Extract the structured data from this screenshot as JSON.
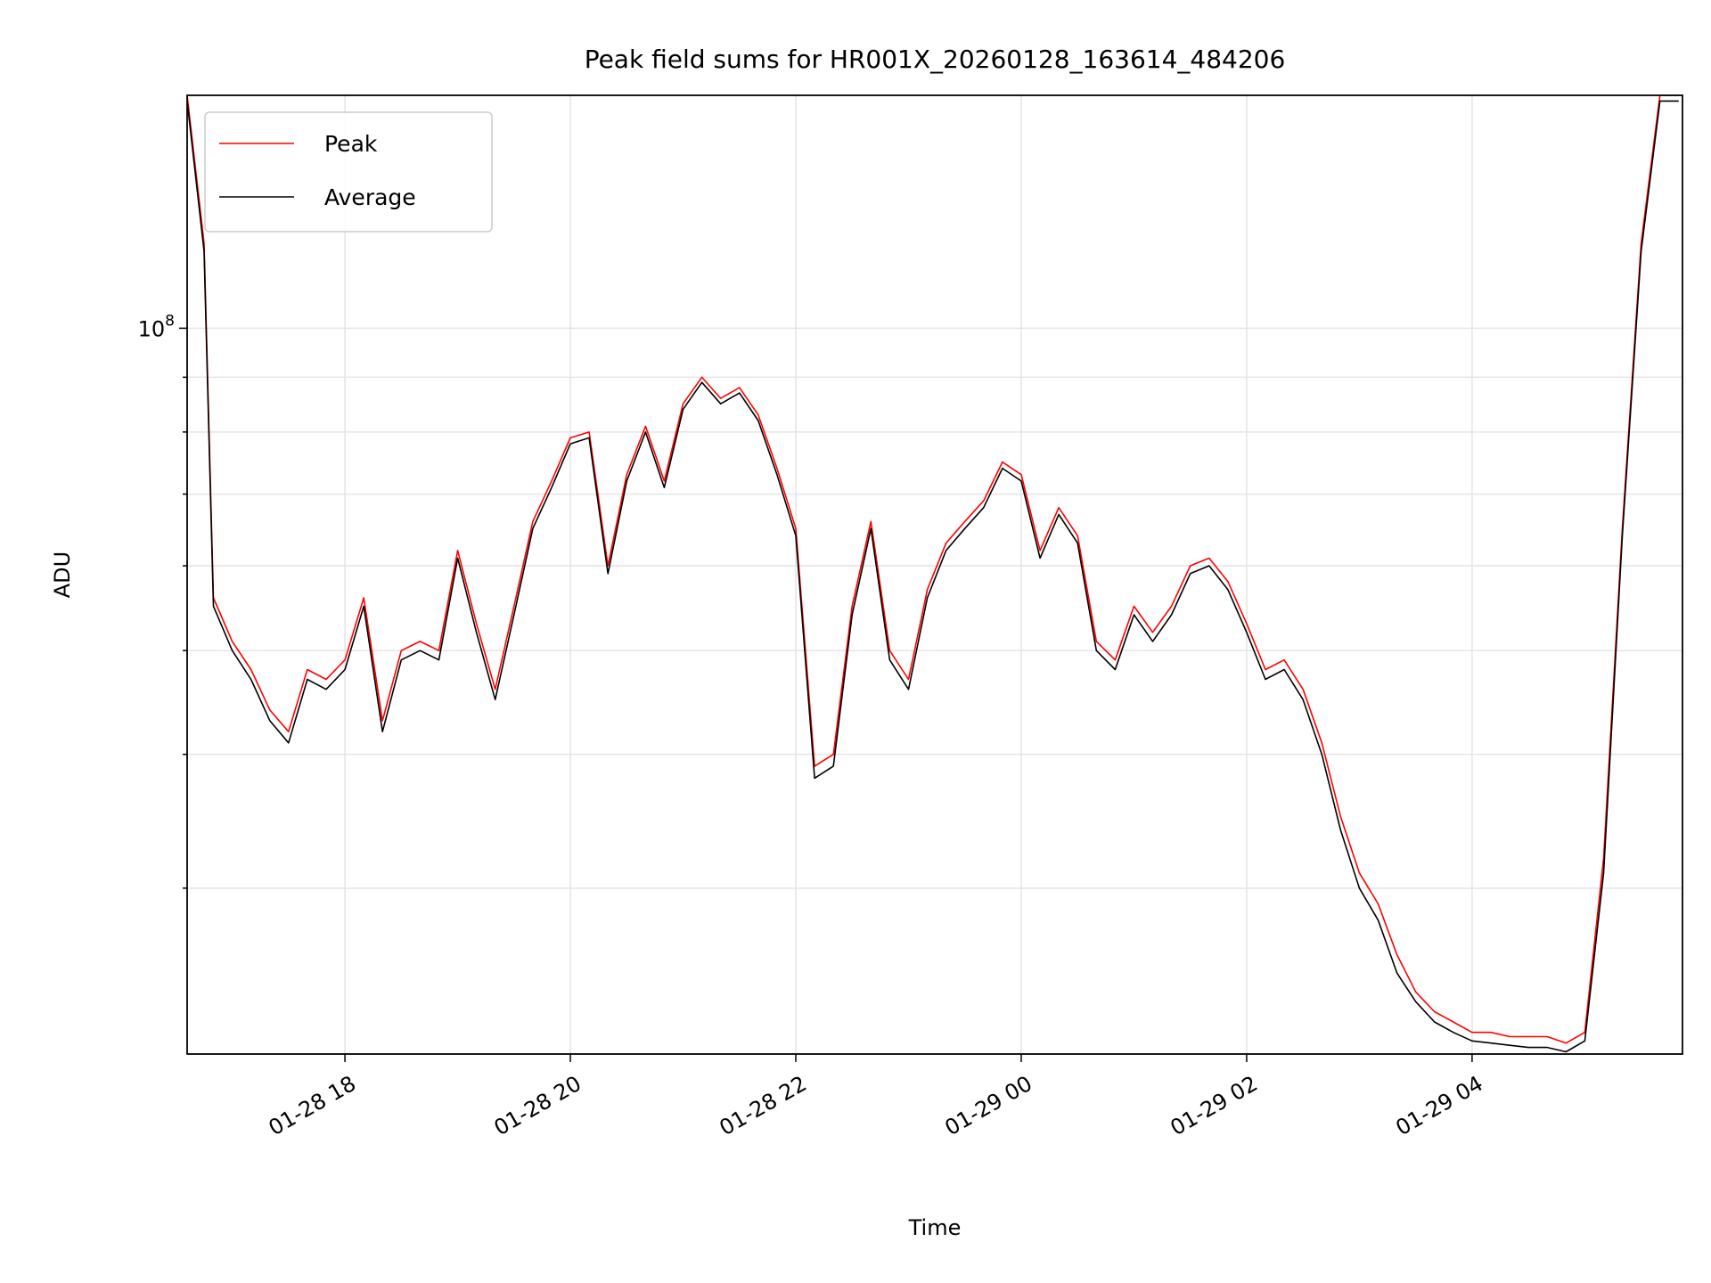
{
  "chart_data": {
    "type": "line",
    "title": "Peak field sums for HR001X_20260128_163614_484206",
    "xlabel": "Time",
    "ylabel": "ADU",
    "y_scale": "log",
    "ylim": [
      21000000,
      165000000
    ],
    "x_range": [
      "2026-01-28 16:36",
      "2026-01-29 05:52"
    ],
    "x_ticks": [
      {
        "label": "01-28 18",
        "time": "2026-01-28 18:00"
      },
      {
        "label": "01-28 20",
        "time": "2026-01-28 20:00"
      },
      {
        "label": "01-28 22",
        "time": "2026-01-28 22:00"
      },
      {
        "label": "01-29 00",
        "time": "2026-01-29 00:00"
      },
      {
        "label": "01-29 02",
        "time": "2026-01-29 02:00"
      },
      {
        "label": "01-29 04",
        "time": "2026-01-29 04:00"
      }
    ],
    "y_ticks": [
      {
        "label_base": "10",
        "label_exp": "8",
        "value": 100000000
      }
    ],
    "grid": true,
    "legend_position": "top-left",
    "series": [
      {
        "name": "Peak",
        "color": "#ff0000",
        "x": [
          "2026-01-28 16:36",
          "2026-01-28 16:45",
          "2026-01-28 16:50",
          "2026-01-28 17:00",
          "2026-01-28 17:10",
          "2026-01-28 17:20",
          "2026-01-28 17:30",
          "2026-01-28 17:40",
          "2026-01-28 17:50",
          "2026-01-28 18:00",
          "2026-01-28 18:10",
          "2026-01-28 18:20",
          "2026-01-28 18:30",
          "2026-01-28 18:40",
          "2026-01-28 18:50",
          "2026-01-28 19:00",
          "2026-01-28 19:10",
          "2026-01-28 19:20",
          "2026-01-28 19:30",
          "2026-01-28 19:40",
          "2026-01-28 19:50",
          "2026-01-28 20:00",
          "2026-01-28 20:10",
          "2026-01-28 20:20",
          "2026-01-28 20:30",
          "2026-01-28 20:40",
          "2026-01-28 20:50",
          "2026-01-28 21:00",
          "2026-01-28 21:10",
          "2026-01-28 21:20",
          "2026-01-28 21:30",
          "2026-01-28 21:40",
          "2026-01-28 21:50",
          "2026-01-28 22:00",
          "2026-01-28 22:10",
          "2026-01-28 22:20",
          "2026-01-28 22:30",
          "2026-01-28 22:40",
          "2026-01-28 22:50",
          "2026-01-28 23:00",
          "2026-01-28 23:10",
          "2026-01-28 23:20",
          "2026-01-28 23:30",
          "2026-01-28 23:40",
          "2026-01-28 23:50",
          "2026-01-29 00:00",
          "2026-01-29 00:10",
          "2026-01-29 00:20",
          "2026-01-29 00:30",
          "2026-01-29 00:40",
          "2026-01-29 00:50",
          "2026-01-29 01:00",
          "2026-01-29 01:10",
          "2026-01-29 01:20",
          "2026-01-29 01:30",
          "2026-01-29 01:40",
          "2026-01-29 01:50",
          "2026-01-29 02:00",
          "2026-01-29 02:10",
          "2026-01-29 02:20",
          "2026-01-29 02:30",
          "2026-01-29 02:40",
          "2026-01-29 02:50",
          "2026-01-29 03:00",
          "2026-01-29 03:10",
          "2026-01-29 03:20",
          "2026-01-29 03:30",
          "2026-01-29 03:40",
          "2026-01-29 03:50",
          "2026-01-29 04:00",
          "2026-01-29 04:10",
          "2026-01-29 04:20",
          "2026-01-29 04:30",
          "2026-01-29 04:40",
          "2026-01-29 04:50",
          "2026-01-29 05:00",
          "2026-01-29 05:10",
          "2026-01-29 05:20",
          "2026-01-29 05:30",
          "2026-01-29 05:40",
          "2026-01-29 05:50"
        ],
        "values": [
          165000000,
          120000000,
          56000000,
          51000000,
          48000000,
          44000000,
          42000000,
          48000000,
          47000000,
          49000000,
          56000000,
          43000000,
          50000000,
          51000000,
          50000000,
          62000000,
          53000000,
          46000000,
          55000000,
          66000000,
          72000000,
          79000000,
          80000000,
          60000000,
          73000000,
          81000000,
          72000000,
          85000000,
          90000000,
          86000000,
          88000000,
          83000000,
          74000000,
          65000000,
          39000000,
          40000000,
          55000000,
          66000000,
          50000000,
          47000000,
          57000000,
          63000000,
          66000000,
          69000000,
          75000000,
          73000000,
          62000000,
          68000000,
          64000000,
          51000000,
          49000000,
          55000000,
          52000000,
          55000000,
          60000000,
          61000000,
          58000000,
          53000000,
          48000000,
          49000000,
          46000000,
          41000000,
          35000000,
          31000000,
          29000000,
          26000000,
          24000000,
          23000000,
          22500000,
          22000000,
          22000000,
          21800000,
          21800000,
          21800000,
          21500000,
          22000000,
          32000000,
          65000000,
          120000000,
          165000000,
          165000000
        ]
      },
      {
        "name": "Average",
        "color": "#000000",
        "x": [
          "2026-01-28 16:36",
          "2026-01-28 16:45",
          "2026-01-28 16:50",
          "2026-01-28 17:00",
          "2026-01-28 17:10",
          "2026-01-28 17:20",
          "2026-01-28 17:30",
          "2026-01-28 17:40",
          "2026-01-28 17:50",
          "2026-01-28 18:00",
          "2026-01-28 18:10",
          "2026-01-28 18:20",
          "2026-01-28 18:30",
          "2026-01-28 18:40",
          "2026-01-28 18:50",
          "2026-01-28 19:00",
          "2026-01-28 19:10",
          "2026-01-28 19:20",
          "2026-01-28 19:30",
          "2026-01-28 19:40",
          "2026-01-28 19:50",
          "2026-01-28 20:00",
          "2026-01-28 20:10",
          "2026-01-28 20:20",
          "2026-01-28 20:30",
          "2026-01-28 20:40",
          "2026-01-28 20:50",
          "2026-01-28 21:00",
          "2026-01-28 21:10",
          "2026-01-28 21:20",
          "2026-01-28 21:30",
          "2026-01-28 21:40",
          "2026-01-28 21:50",
          "2026-01-28 22:00",
          "2026-01-28 22:10",
          "2026-01-28 22:20",
          "2026-01-28 22:30",
          "2026-01-28 22:40",
          "2026-01-28 22:50",
          "2026-01-28 23:00",
          "2026-01-28 23:10",
          "2026-01-28 23:20",
          "2026-01-28 23:30",
          "2026-01-28 23:40",
          "2026-01-28 23:50",
          "2026-01-29 00:00",
          "2026-01-29 00:10",
          "2026-01-29 00:20",
          "2026-01-29 00:30",
          "2026-01-29 00:40",
          "2026-01-29 00:50",
          "2026-01-29 01:00",
          "2026-01-29 01:10",
          "2026-01-29 01:20",
          "2026-01-29 01:30",
          "2026-01-29 01:40",
          "2026-01-29 01:50",
          "2026-01-29 02:00",
          "2026-01-29 02:10",
          "2026-01-29 02:20",
          "2026-01-29 02:30",
          "2026-01-29 02:40",
          "2026-01-29 02:50",
          "2026-01-29 03:00",
          "2026-01-29 03:10",
          "2026-01-29 03:20",
          "2026-01-29 03:30",
          "2026-01-29 03:40",
          "2026-01-29 03:50",
          "2026-01-29 04:00",
          "2026-01-29 04:10",
          "2026-01-29 04:20",
          "2026-01-29 04:30",
          "2026-01-29 04:40",
          "2026-01-29 04:50",
          "2026-01-29 05:00",
          "2026-01-29 05:10",
          "2026-01-29 05:20",
          "2026-01-29 05:30",
          "2026-01-29 05:40",
          "2026-01-29 05:50"
        ],
        "values": [
          163000000,
          118000000,
          55000000,
          50000000,
          47000000,
          43000000,
          41000000,
          47000000,
          46000000,
          48000000,
          55000000,
          42000000,
          49000000,
          50000000,
          49000000,
          61000000,
          52000000,
          45000000,
          54000000,
          65000000,
          71000000,
          78000000,
          79000000,
          59000000,
          72000000,
          80000000,
          71000000,
          84000000,
          89000000,
          85000000,
          87000000,
          82000000,
          73000000,
          64000000,
          38000000,
          39000000,
          54000000,
          65000000,
          49000000,
          46000000,
          56000000,
          62000000,
          65000000,
          68000000,
          74000000,
          72000000,
          61000000,
          67000000,
          63000000,
          50000000,
          48000000,
          54000000,
          51000000,
          54000000,
          59000000,
          60000000,
          57000000,
          52000000,
          47000000,
          48000000,
          45000000,
          40000000,
          34000000,
          30000000,
          28000000,
          25000000,
          23500000,
          22500000,
          22000000,
          21600000,
          21500000,
          21400000,
          21300000,
          21300000,
          21100000,
          21600000,
          31000000,
          64000000,
          118000000,
          163000000,
          163000000
        ]
      }
    ]
  }
}
